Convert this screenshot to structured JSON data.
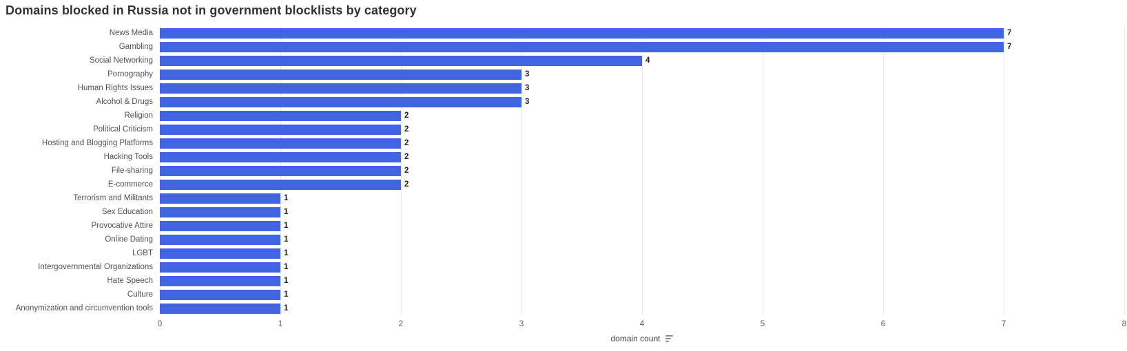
{
  "title": "Domains blocked in Russia not in government blocklists by category",
  "chart_data": {
    "type": "bar",
    "orientation": "horizontal",
    "title": "Domains blocked in Russia not in government blocklists by category",
    "categories": [
      "News Media",
      "Gambling",
      "Social Networking",
      "Pornography",
      "Human Rights Issues",
      "Alcohol & Drugs",
      "Religion",
      "Political Criticism",
      "Hosting and Blogging Platforms",
      "Hacking Tools",
      "File-sharing",
      "E-commerce",
      "Terrorism and Militants",
      "Sex Education",
      "Provocative Attire",
      "Online Dating",
      "LGBT",
      "Intergovernmental Organizations",
      "Hate Speech",
      "Culture",
      "Anonymization and circumvention tools"
    ],
    "values": [
      7,
      7,
      4,
      3,
      3,
      3,
      2,
      2,
      2,
      2,
      2,
      2,
      1,
      1,
      1,
      1,
      1,
      1,
      1,
      1,
      1
    ],
    "value_labels_shown": true,
    "xlabel": "domain count",
    "ylabel": "",
    "xlim": [
      0,
      8
    ],
    "xticks": [
      0,
      1,
      2,
      3,
      4,
      5,
      6,
      7,
      8
    ],
    "grid": "vertical",
    "legend": "none"
  },
  "axis": {
    "label": "domain count",
    "sort_icon": "sort-descending-icon"
  },
  "colors": {
    "bar": "#4165e1",
    "gridline": "#e9e9e9",
    "title_text": "#333333",
    "category_label": "#525252",
    "tick_label": "#5f5f5f",
    "value_label": "#1f1f1f",
    "background": "#ffffff"
  }
}
